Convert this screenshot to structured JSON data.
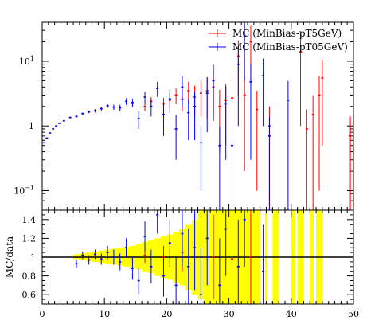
{
  "chart_data": [
    {
      "type": "scatter",
      "panel": "main",
      "title": "",
      "xlabel": "",
      "ylabel": "",
      "xlim": [
        0,
        50
      ],
      "ylim": [
        0.05,
        40
      ],
      "log_y": true,
      "legend_position": "top-right",
      "y_tick_labels": [
        {
          "value": 0.1,
          "mantissa": "10",
          "exp": "−1"
        },
        {
          "value": 1,
          "mantissa": "1",
          "exp": ""
        },
        {
          "value": 10,
          "mantissa": "10",
          "exp": "1"
        }
      ],
      "series": [
        {
          "name": "MC (MinBias-pT5GeV)",
          "color": "#ff0000",
          "points": [
            {
              "x": 16.5,
              "y": 2.0,
              "err": 0.3
            },
            {
              "x": 17.5,
              "y": 2.4,
              "err": 0.4
            },
            {
              "x": 19.5,
              "y": 2.2,
              "err": 0.5
            },
            {
              "x": 20.5,
              "y": 2.5,
              "err": 0.6
            },
            {
              "x": 21.5,
              "y": 3.0,
              "err": 0.8
            },
            {
              "x": 22.5,
              "y": 2.6,
              "err": 0.9
            },
            {
              "x": 23.5,
              "y": 3.5,
              "err": 1.3
            },
            {
              "x": 24.5,
              "y": 2.8,
              "err": 1.4
            },
            {
              "x": 25.5,
              "y": 3.2,
              "err": 1.8
            },
            {
              "x": 26.5,
              "y": 3.5,
              "err": 2.2
            },
            {
              "x": 27.5,
              "y": 4.0,
              "err": 2.5
            },
            {
              "x": 28.5,
              "y": 2.0,
              "err": 1.6
            },
            {
              "x": 29.5,
              "y": 2.5,
              "err": 2.0
            },
            {
              "x": 30.5,
              "y": 2.7,
              "err": 2.4
            },
            {
              "x": 31.5,
              "y": 12.0,
              "err": 9.0
            },
            {
              "x": 32.5,
              "y": 3.0,
              "err": 2.8
            },
            {
              "x": 33.5,
              "y": 20.0,
              "err": 15.0
            },
            {
              "x": 34.5,
              "y": 1.8,
              "err": 1.7
            },
            {
              "x": 36.5,
              "y": 1.0,
              "err": 1.0
            },
            {
              "x": 41.5,
              "y": 14.0,
              "err": 13.0
            },
            {
              "x": 42.5,
              "y": 0.9,
              "err": 0.9
            },
            {
              "x": 43.5,
              "y": 1.5,
              "err": 1.5
            },
            {
              "x": 44.5,
              "y": 3.0,
              "err": 2.9
            },
            {
              "x": 45.0,
              "y": 5.5,
              "err": 5.0
            },
            {
              "x": 49.5,
              "y": 0.7,
              "err": 0.7
            }
          ]
        },
        {
          "name": "MC (MinBias-pT05GeV)",
          "color": "#0000ff",
          "points": [
            {
              "x": 0.25,
              "y": 0.55,
              "err": 0.01
            },
            {
              "x": 0.75,
              "y": 0.65,
              "err": 0.01
            },
            {
              "x": 1.25,
              "y": 0.78,
              "err": 0.01
            },
            {
              "x": 1.75,
              "y": 0.9,
              "err": 0.01
            },
            {
              "x": 2.25,
              "y": 1.0,
              "err": 0.02
            },
            {
              "x": 2.75,
              "y": 1.1,
              "err": 0.02
            },
            {
              "x": 3.5,
              "y": 1.2,
              "err": 0.03
            },
            {
              "x": 4.5,
              "y": 1.35,
              "err": 0.04
            },
            {
              "x": 5.5,
              "y": 1.4,
              "err": 0.05
            },
            {
              "x": 6.5,
              "y": 1.55,
              "err": 0.06
            },
            {
              "x": 7.5,
              "y": 1.65,
              "err": 0.08
            },
            {
              "x": 8.5,
              "y": 1.72,
              "err": 0.1
            },
            {
              "x": 9.5,
              "y": 1.85,
              "err": 0.12
            },
            {
              "x": 10.5,
              "y": 2.05,
              "err": 0.15
            },
            {
              "x": 11.5,
              "y": 1.95,
              "err": 0.18
            },
            {
              "x": 12.5,
              "y": 1.9,
              "err": 0.22
            },
            {
              "x": 13.5,
              "y": 2.4,
              "err": 0.28
            },
            {
              "x": 14.5,
              "y": 2.3,
              "err": 0.35
            },
            {
              "x": 15.5,
              "y": 1.3,
              "err": 0.4
            },
            {
              "x": 16.5,
              "y": 2.8,
              "err": 0.55
            },
            {
              "x": 17.5,
              "y": 2.0,
              "err": 0.6
            },
            {
              "x": 18.5,
              "y": 3.8,
              "err": 1.0
            },
            {
              "x": 19.5,
              "y": 1.5,
              "err": 0.8
            },
            {
              "x": 20.5,
              "y": 2.6,
              "err": 1.0
            },
            {
              "x": 21.5,
              "y": 0.9,
              "err": 0.6
            },
            {
              "x": 22.5,
              "y": 4.0,
              "err": 2.0
            },
            {
              "x": 23.5,
              "y": 1.6,
              "err": 1.0
            },
            {
              "x": 24.5,
              "y": 2.0,
              "err": 1.4
            },
            {
              "x": 25.5,
              "y": 0.55,
              "err": 0.45
            },
            {
              "x": 26.5,
              "y": 3.2,
              "err": 2.4
            },
            {
              "x": 27.5,
              "y": 5.0,
              "err": 3.8
            },
            {
              "x": 28.5,
              "y": 0.5,
              "err": 0.45
            },
            {
              "x": 29.5,
              "y": 2.2,
              "err": 1.9
            },
            {
              "x": 30.5,
              "y": 0.5,
              "err": 0.48
            },
            {
              "x": 31.5,
              "y": 9.0,
              "err": 8.0
            },
            {
              "x": 32.5,
              "y": 25.0,
              "err": 20.0
            },
            {
              "x": 33.5,
              "y": 4.8,
              "err": 4.5
            },
            {
              "x": 35.5,
              "y": 6.0,
              "err": 5.0
            },
            {
              "x": 36.5,
              "y": 0.7,
              "err": 0.68
            },
            {
              "x": 39.5,
              "y": 2.5,
              "err": 2.45
            }
          ]
        }
      ]
    },
    {
      "type": "scatter",
      "panel": "ratio",
      "title": "",
      "xlabel": "",
      "ylabel": "MC/data",
      "xlim": [
        0,
        50
      ],
      "ylim": [
        0.5,
        1.5
      ],
      "x_ticks": [
        0,
        10,
        20,
        30,
        40,
        50
      ],
      "y_ticks": [
        0.6,
        0.8,
        1.0,
        1.2,
        1.4
      ],
      "y_tick_labels": [
        "0.6",
        "0.8",
        "1",
        "1.2",
        "1.4"
      ],
      "band_color": "#ffff00",
      "band": [
        {
          "x0": 5,
          "x1": 6,
          "lo": 0.98,
          "hi": 1.03
        },
        {
          "x0": 6,
          "x1": 7,
          "lo": 0.97,
          "hi": 1.04
        },
        {
          "x0": 7,
          "x1": 8,
          "lo": 0.96,
          "hi": 1.05
        },
        {
          "x0": 8,
          "x1": 9,
          "lo": 0.95,
          "hi": 1.06
        },
        {
          "x0": 9,
          "x1": 10,
          "lo": 0.94,
          "hi": 1.07
        },
        {
          "x0": 10,
          "x1": 11,
          "lo": 0.93,
          "hi": 1.08
        },
        {
          "x0": 11,
          "x1": 12,
          "lo": 0.92,
          "hi": 1.09
        },
        {
          "x0": 12,
          "x1": 13,
          "lo": 0.91,
          "hi": 1.1
        },
        {
          "x0": 13,
          "x1": 14,
          "lo": 0.9,
          "hi": 1.11
        },
        {
          "x0": 14,
          "x1": 15,
          "lo": 0.89,
          "hi": 1.12
        },
        {
          "x0": 15,
          "x1": 16,
          "lo": 0.87,
          "hi": 1.14
        },
        {
          "x0": 16,
          "x1": 17,
          "lo": 0.85,
          "hi": 1.16
        },
        {
          "x0": 17,
          "x1": 18,
          "lo": 0.83,
          "hi": 1.18
        },
        {
          "x0": 18,
          "x1": 19,
          "lo": 0.8,
          "hi": 1.2
        },
        {
          "x0": 19,
          "x1": 20,
          "lo": 0.78,
          "hi": 1.22
        },
        {
          "x0": 20,
          "x1": 21,
          "lo": 0.76,
          "hi": 1.24
        },
        {
          "x0": 21,
          "x1": 22,
          "lo": 0.73,
          "hi": 1.27
        },
        {
          "x0": 22,
          "x1": 23,
          "lo": 0.7,
          "hi": 1.3
        },
        {
          "x0": 23,
          "x1": 24,
          "lo": 0.65,
          "hi": 1.35
        },
        {
          "x0": 24,
          "x1": 25,
          "lo": 0.6,
          "hi": 1.4
        },
        {
          "x0": 25,
          "x1": 26,
          "lo": 0.55,
          "hi": 1.5
        },
        {
          "x0": 26,
          "x1": 27,
          "lo": 0.5,
          "hi": 1.5
        },
        {
          "x0": 27,
          "x1": 28,
          "lo": 0.5,
          "hi": 1.5
        },
        {
          "x0": 28,
          "x1": 29,
          "lo": 0.5,
          "hi": 1.5
        },
        {
          "x0": 29,
          "x1": 30,
          "lo": 0.5,
          "hi": 1.5
        },
        {
          "x0": 30,
          "x1": 31,
          "lo": 0.5,
          "hi": 1.5
        },
        {
          "x0": 31,
          "x1": 32,
          "lo": 0.5,
          "hi": 1.5
        },
        {
          "x0": 32,
          "x1": 33,
          "lo": 0.5,
          "hi": 1.5
        },
        {
          "x0": 33,
          "x1": 34,
          "lo": 0.5,
          "hi": 1.5
        },
        {
          "x0": 34,
          "x1": 35,
          "lo": 0.5,
          "hi": 1.5
        },
        {
          "x0": 35.8,
          "x1": 36.2,
          "lo": 0.5,
          "hi": 1.5
        },
        {
          "x0": 37,
          "x1": 38,
          "lo": 0.5,
          "hi": 1.5
        },
        {
          "x0": 40,
          "x1": 40.6,
          "lo": 0.5,
          "hi": 1.5
        },
        {
          "x0": 41,
          "x1": 42,
          "lo": 0.5,
          "hi": 1.5
        },
        {
          "x0": 43,
          "x1": 43.6,
          "lo": 0.5,
          "hi": 1.5
        },
        {
          "x0": 44,
          "x1": 45,
          "lo": 0.5,
          "hi": 1.5
        }
      ],
      "series": [
        {
          "color": "#ff0000",
          "points": [
            {
              "x": 16.5,
              "y": 1.02,
              "err": 0.08
            },
            {
              "x": 19.5,
              "y": 1.0,
              "err": 0.12
            },
            {
              "x": 22.5,
              "y": 1.05,
              "err": 0.2
            },
            {
              "x": 27.5,
              "y": 1.0,
              "err": 0.45
            },
            {
              "x": 30.5,
              "y": 0.98,
              "err": 0.45
            },
            {
              "x": 33.5,
              "y": 1.0,
              "err": 0.5
            }
          ]
        },
        {
          "color": "#0000ff",
          "points": [
            {
              "x": 5.5,
              "y": 0.93,
              "err": 0.04
            },
            {
              "x": 6.5,
              "y": 1.02,
              "err": 0.04
            },
            {
              "x": 7.5,
              "y": 0.97,
              "err": 0.05
            },
            {
              "x": 8.5,
              "y": 1.03,
              "err": 0.05
            },
            {
              "x": 9.5,
              "y": 0.98,
              "err": 0.06
            },
            {
              "x": 10.5,
              "y": 1.05,
              "err": 0.07
            },
            {
              "x": 11.5,
              "y": 1.0,
              "err": 0.08
            },
            {
              "x": 12.5,
              "y": 0.95,
              "err": 0.09
            },
            {
              "x": 13.5,
              "y": 1.1,
              "err": 0.1
            },
            {
              "x": 14.5,
              "y": 0.88,
              "err": 0.12
            },
            {
              "x": 15.5,
              "y": 0.75,
              "err": 0.14
            },
            {
              "x": 16.5,
              "y": 1.22,
              "err": 0.16
            },
            {
              "x": 17.5,
              "y": 0.9,
              "err": 0.18
            },
            {
              "x": 18.5,
              "y": 1.45,
              "err": 0.2
            },
            {
              "x": 19.5,
              "y": 0.8,
              "err": 0.22
            },
            {
              "x": 20.5,
              "y": 1.15,
              "err": 0.25
            },
            {
              "x": 21.5,
              "y": 0.7,
              "err": 0.3
            },
            {
              "x": 22.5,
              "y": 1.25,
              "err": 0.35
            },
            {
              "x": 23.5,
              "y": 0.9,
              "err": 0.4
            },
            {
              "x": 24.5,
              "y": 1.1,
              "err": 0.45
            },
            {
              "x": 25.5,
              "y": 0.6,
              "err": 0.5
            },
            {
              "x": 26.5,
              "y": 1.2,
              "err": 0.5
            },
            {
              "x": 28.5,
              "y": 0.7,
              "err": 0.5
            },
            {
              "x": 29.5,
              "y": 1.3,
              "err": 0.5
            },
            {
              "x": 31.5,
              "y": 0.9,
              "err": 0.5
            },
            {
              "x": 32.5,
              "y": 1.4,
              "err": 0.5
            },
            {
              "x": 35.5,
              "y": 0.85,
              "err": 0.5
            }
          ]
        }
      ]
    }
  ]
}
